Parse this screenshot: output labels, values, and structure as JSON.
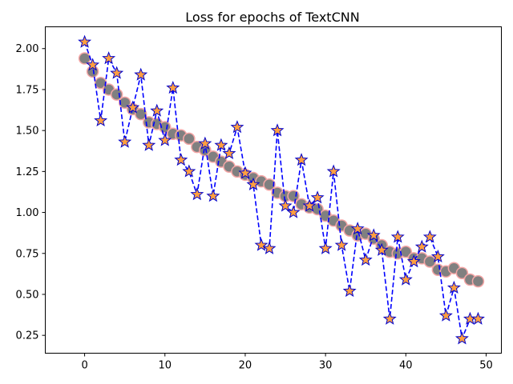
{
  "chart_data": {
    "type": "line",
    "title": "Loss for epochs of TextCNN",
    "xlabel": "",
    "ylabel": "",
    "xlim": [
      -4.9,
      51.9
    ],
    "ylim": [
      0.141,
      2.133
    ],
    "x_ticks": [
      0,
      10,
      20,
      30,
      40,
      50
    ],
    "y_ticks": [
      0.25,
      0.5,
      0.75,
      1.0,
      1.25,
      1.5,
      1.75,
      2.0
    ],
    "x_tick_labels": [
      "0",
      "10",
      "20",
      "30",
      "40",
      "50"
    ],
    "y_tick_labels": [
      "0.25",
      "0.50",
      "0.75",
      "1.00",
      "1.25",
      "1.50",
      "1.75",
      "2.00"
    ],
    "grid": false,
    "legend": "none",
    "x": [
      0,
      1,
      2,
      3,
      4,
      5,
      6,
      7,
      8,
      9,
      10,
      11,
      12,
      13,
      14,
      15,
      16,
      17,
      18,
      19,
      20,
      21,
      22,
      23,
      24,
      25,
      26,
      27,
      28,
      29,
      30,
      31,
      32,
      33,
      34,
      35,
      36,
      37,
      38,
      39,
      40,
      41,
      42,
      43,
      44,
      45,
      46,
      47,
      48,
      49
    ],
    "series": [
      {
        "style": "circle-markers",
        "marker_fill": "#808080",
        "marker_edge": "#f4a6a6",
        "values": [
          1.94,
          1.86,
          1.79,
          1.75,
          1.72,
          1.67,
          1.63,
          1.6,
          1.55,
          1.54,
          1.52,
          1.48,
          1.47,
          1.45,
          1.4,
          1.38,
          1.34,
          1.31,
          1.28,
          1.25,
          1.23,
          1.21,
          1.19,
          1.17,
          1.12,
          1.1,
          1.1,
          1.05,
          1.03,
          1.02,
          0.98,
          0.95,
          0.92,
          0.89,
          0.86,
          0.87,
          0.84,
          0.8,
          0.76,
          0.75,
          0.76,
          0.72,
          0.72,
          0.7,
          0.65,
          0.64,
          0.66,
          0.63,
          0.59,
          0.58
        ]
      },
      {
        "style": "dashed-line-star-markers",
        "line_color": "#0000ff",
        "marker_fill": "#ff9f3f",
        "marker_edge": "#0000cc",
        "values": [
          2.04,
          1.9,
          1.56,
          1.94,
          1.85,
          1.43,
          1.64,
          1.84,
          1.41,
          1.62,
          1.44,
          1.76,
          1.32,
          1.25,
          1.11,
          1.42,
          1.1,
          1.41,
          1.36,
          1.52,
          1.24,
          1.17,
          0.8,
          0.78,
          1.5,
          1.04,
          1.0,
          1.32,
          1.04,
          1.09,
          0.78,
          1.25,
          0.8,
          0.52,
          0.9,
          0.71,
          0.86,
          0.77,
          0.35,
          0.85,
          0.59,
          0.7,
          0.79,
          0.85,
          0.73,
          0.37,
          0.54,
          0.23,
          0.35,
          0.35
        ]
      }
    ]
  }
}
